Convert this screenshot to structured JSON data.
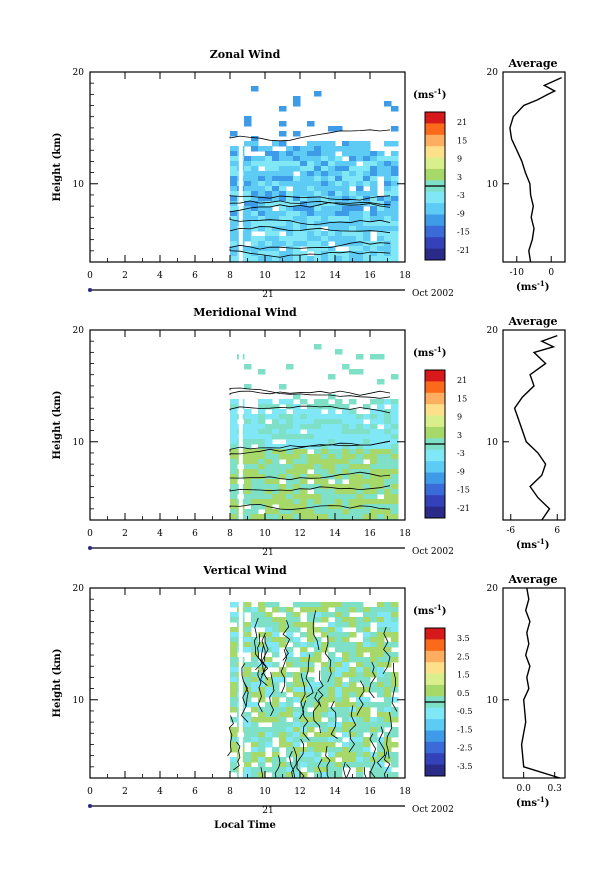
{
  "chart_data": [
    {
      "type": "heatmap",
      "title": "Zonal Wind",
      "ylabel": "Height (km)",
      "yticks": [
        "20",
        "10"
      ],
      "ylim": [
        3,
        20
      ],
      "xticks": [
        "0",
        "2",
        "4",
        "6",
        "8",
        "10",
        "12",
        "14",
        "16",
        "18"
      ],
      "xlim": [
        0,
        18
      ],
      "data_start_hour": 8,
      "day_label": "21",
      "date_label": "Oct 2002",
      "colorbar": {
        "unit_base": "(ms",
        "unit_exp": "-1",
        "unit_end": ")",
        "ticks": [
          "21",
          "15",
          "9",
          "3",
          "-3",
          "-9",
          "-15",
          "-21"
        ],
        "colors": [
          "#d7191c",
          "#fb6a1a",
          "#fdae61",
          "#fee08b",
          "#d9ef8b",
          "#a6d96a",
          "#7fe0c8",
          "#7fe7f5",
          "#5ecbf5",
          "#3e9be8",
          "#3a6bd9",
          "#3342b8",
          "#2a2a88"
        ]
      },
      "field_colors": [
        "#7fe7f5",
        "#5ecbf5",
        "#3e9be8"
      ],
      "profile": {
        "title": "Average",
        "xticks": [
          "-10",
          "0"
        ],
        "xlim": [
          -14,
          4
        ],
        "yticks": [
          "20",
          "10"
        ],
        "x_unit": "(ms",
        "x_unit_exp": "-1",
        "x_unit_end": ")",
        "points": [
          [
            -6,
            3
          ],
          [
            -6.5,
            4
          ],
          [
            -5.5,
            5
          ],
          [
            -5,
            6
          ],
          [
            -5.8,
            7
          ],
          [
            -5.2,
            8
          ],
          [
            -6,
            9
          ],
          [
            -6.2,
            10
          ],
          [
            -7.5,
            11
          ],
          [
            -8.5,
            12
          ],
          [
            -10,
            13
          ],
          [
            -11.5,
            14
          ],
          [
            -12,
            15
          ],
          [
            -11,
            16
          ],
          [
            -8,
            17
          ],
          [
            -4,
            17.5
          ],
          [
            -1,
            18
          ],
          [
            1,
            18.3
          ],
          [
            -2,
            18.8
          ],
          [
            3,
            19.5
          ]
        ]
      }
    },
    {
      "type": "heatmap",
      "title": "Meridional Wind",
      "ylabel": "Height (km)",
      "yticks": [
        "20",
        "10"
      ],
      "ylim": [
        3,
        20
      ],
      "xticks": [
        "0",
        "2",
        "4",
        "6",
        "8",
        "10",
        "12",
        "14",
        "16",
        "18"
      ],
      "xlim": [
        0,
        18
      ],
      "data_start_hour": 8,
      "day_label": "21",
      "date_label": "Oct 2002",
      "colorbar": {
        "unit_base": "(ms",
        "unit_exp": "-1",
        "unit_end": ")",
        "ticks": [
          "21",
          "15",
          "9",
          "3",
          "-3",
          "-9",
          "-15",
          "-21"
        ],
        "colors": [
          "#d7191c",
          "#fb6a1a",
          "#fdae61",
          "#fee08b",
          "#d9ef8b",
          "#a6d96a",
          "#7fe0c8",
          "#7fe7f5",
          "#5ecbf5",
          "#3e9be8",
          "#3a6bd9",
          "#3342b8",
          "#2a2a88"
        ]
      },
      "field_colors": [
        "#7fe7f5",
        "#7fe0c8",
        "#a6d96a"
      ],
      "profile": {
        "title": "Average",
        "xticks": [
          "-6",
          "6"
        ],
        "xlim": [
          -8,
          8
        ],
        "yticks": [
          "20",
          "10"
        ],
        "x_unit": "(ms",
        "x_unit_exp": "-1",
        "x_unit_end": ")",
        "points": [
          [
            2,
            3
          ],
          [
            4,
            4
          ],
          [
            1,
            5
          ],
          [
            -1,
            6
          ],
          [
            2,
            7
          ],
          [
            3,
            8
          ],
          [
            1,
            9
          ],
          [
            -2,
            10
          ],
          [
            -3,
            11
          ],
          [
            -4,
            12
          ],
          [
            -5,
            13
          ],
          [
            -3,
            14
          ],
          [
            0,
            15
          ],
          [
            -1,
            16
          ],
          [
            3,
            17
          ],
          [
            0,
            18
          ],
          [
            5,
            18.5
          ],
          [
            2,
            19
          ],
          [
            6,
            19.5
          ]
        ]
      }
    },
    {
      "type": "heatmap",
      "title": "Vertical Wind",
      "ylabel": "Height (km)",
      "yticks": [
        "20",
        "10"
      ],
      "ylim": [
        3,
        20
      ],
      "xticks": [
        "0",
        "2",
        "4",
        "6",
        "8",
        "10",
        "12",
        "14",
        "16",
        "18"
      ],
      "xlim": [
        0,
        18
      ],
      "data_start_hour": 8,
      "day_label": "21",
      "date_label": "Oct 2002",
      "xlabel": "Local Time",
      "colorbar": {
        "unit_base": "(ms",
        "unit_exp": "-1",
        "unit_end": ")",
        "ticks": [
          "3.5",
          "2.5",
          "1.5",
          "0.5",
          "-0.5",
          "-1.5",
          "-2.5",
          "-3.5"
        ],
        "colors": [
          "#d7191c",
          "#fb6a1a",
          "#fdae61",
          "#fee08b",
          "#d9ef8b",
          "#a6d96a",
          "#7fe0c8",
          "#7fe7f5",
          "#5ecbf5",
          "#3e9be8",
          "#3a6bd9",
          "#3342b8",
          "#2a2a88"
        ]
      },
      "field_colors": [
        "#7fe0c8",
        "#a6d96a",
        "#7fe7f5"
      ],
      "profile": {
        "title": "Average",
        "xticks": [
          "0.0",
          "0.3"
        ],
        "xlim": [
          -0.2,
          0.4
        ],
        "yticks": [
          "20",
          "10"
        ],
        "x_unit": "(ms",
        "x_unit_exp": "-1",
        "x_unit_end": ")",
        "points": [
          [
            0.35,
            3
          ],
          [
            0.0,
            4
          ],
          [
            -0.02,
            6
          ],
          [
            0.02,
            8
          ],
          [
            0.0,
            10
          ],
          [
            0.05,
            11
          ],
          [
            0.03,
            12
          ],
          [
            0.06,
            13
          ],
          [
            0.02,
            14
          ],
          [
            0.05,
            15
          ],
          [
            0.03,
            16
          ],
          [
            0.06,
            17
          ],
          [
            0.02,
            18
          ],
          [
            0.05,
            19
          ],
          [
            0.03,
            20
          ]
        ]
      }
    }
  ]
}
